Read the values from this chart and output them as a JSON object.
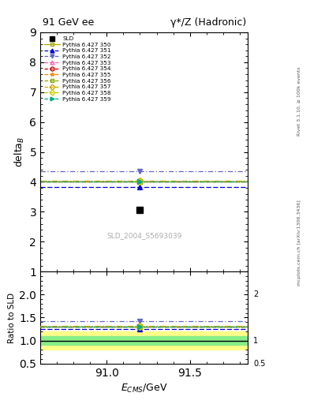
{
  "title_left": "91 GeV ee",
  "title_right": "γ*/Z (Hadronic)",
  "ylabel_main": "delta_B",
  "ylabel_ratio": "Ratio to SLD",
  "xlabel": "E_{CMS}/GeV",
  "watermark": "SLD_2004_S5693039",
  "right_label_top": "Rivet 3.1.10, ≥ 100k events",
  "right_label_bottom": "mcplots.cern.ch [arXiv:1306.3436]",
  "ylim_main": [
    1.0,
    9.0
  ],
  "ylim_ratio": [
    0.5,
    2.5
  ],
  "xlim": [
    90.6,
    91.85
  ],
  "sld_x": 91.2,
  "sld_y": 3.07,
  "pythia_x": 91.2,
  "lines": [
    {
      "label": "Pythia 6.427 350",
      "y": 4.02,
      "color": "#aaaa00",
      "marker": "s",
      "mfc": "none",
      "dashes": []
    },
    {
      "label": "Pythia 6.427 351",
      "y": 3.84,
      "color": "#0000dd",
      "marker": "^",
      "mfc": "#0000dd",
      "dashes": [
        5,
        2
      ]
    },
    {
      "label": "Pythia 6.427 352",
      "y": 4.35,
      "color": "#6666cc",
      "marker": "v",
      "mfc": "#6666cc",
      "dashes": [
        5,
        2,
        1,
        2
      ]
    },
    {
      "label": "Pythia 6.427 353",
      "y": 4.02,
      "color": "#ff66aa",
      "marker": "^",
      "mfc": "none",
      "dashes": [
        1,
        2
      ]
    },
    {
      "label": "Pythia 6.427 354",
      "y": 4.02,
      "color": "#cc0000",
      "marker": "o",
      "mfc": "none",
      "dashes": [
        4,
        2
      ]
    },
    {
      "label": "Pythia 6.427 355",
      "y": 4.02,
      "color": "#ff8800",
      "marker": "*",
      "mfc": "#ff8800",
      "dashes": [
        4,
        2,
        1,
        2
      ]
    },
    {
      "label": "Pythia 6.427 356",
      "y": 4.02,
      "color": "#88aa00",
      "marker": "s",
      "mfc": "none",
      "dashes": [
        1,
        2
      ]
    },
    {
      "label": "Pythia 6.427 357",
      "y": 4.05,
      "color": "#ccaa00",
      "marker": "D",
      "mfc": "none",
      "dashes": [
        6,
        2,
        1,
        2
      ]
    },
    {
      "label": "Pythia 6.427 358",
      "y": 4.02,
      "color": "#cccc00",
      "marker": "D",
      "mfc": "none",
      "dashes": [
        1,
        3
      ]
    },
    {
      "label": "Pythia 6.427 359",
      "y": 4.02,
      "color": "#00aa88",
      "marker": ">",
      "mfc": "#00aa88",
      "dashes": [
        4,
        1,
        1,
        1
      ]
    }
  ],
  "band_green": 0.1,
  "band_yellow": 0.2,
  "ratio_lines": [
    {
      "y": 1.31,
      "color": "#aaaa00",
      "dashes": []
    },
    {
      "y": 1.25,
      "color": "#0000dd",
      "dashes": [
        5,
        2
      ]
    },
    {
      "y": 1.42,
      "color": "#6666cc",
      "dashes": [
        5,
        2,
        1,
        2
      ]
    },
    {
      "y": 1.31,
      "color": "#ff66aa",
      "dashes": [
        1,
        2
      ]
    },
    {
      "y": 1.31,
      "color": "#cc0000",
      "dashes": [
        4,
        2
      ]
    },
    {
      "y": 1.31,
      "color": "#ff8800",
      "dashes": [
        4,
        2,
        1,
        2
      ]
    },
    {
      "y": 1.31,
      "color": "#88aa00",
      "dashes": [
        1,
        2
      ]
    },
    {
      "y": 1.32,
      "color": "#ccaa00",
      "dashes": [
        6,
        2,
        1,
        2
      ]
    },
    {
      "y": 1.31,
      "color": "#cccc00",
      "dashes": [
        1,
        3
      ]
    },
    {
      "y": 1.31,
      "color": "#00aa88",
      "dashes": [
        4,
        1,
        1,
        1
      ]
    }
  ],
  "ratio_markers": [
    {
      "y": 1.31,
      "color": "#aaaa00",
      "marker": "s",
      "mfc": "none"
    },
    {
      "y": 1.25,
      "color": "#0000dd",
      "marker": "^",
      "mfc": "#0000dd"
    },
    {
      "y": 1.42,
      "color": "#6666cc",
      "marker": "v",
      "mfc": "#6666cc"
    },
    {
      "y": 1.31,
      "color": "#ff66aa",
      "marker": "^",
      "mfc": "none"
    },
    {
      "y": 1.31,
      "color": "#cc0000",
      "marker": "o",
      "mfc": "none"
    },
    {
      "y": 1.31,
      "color": "#ff8800",
      "marker": "*",
      "mfc": "#ff8800"
    },
    {
      "y": 1.31,
      "color": "#88aa00",
      "marker": "s",
      "mfc": "none"
    },
    {
      "y": 1.32,
      "color": "#ccaa00",
      "marker": "D",
      "mfc": "none"
    },
    {
      "y": 1.31,
      "color": "#cccc00",
      "marker": "D",
      "mfc": "none"
    },
    {
      "y": 1.31,
      "color": "#00aa88",
      "marker": ">",
      "mfc": "#00aa88"
    }
  ]
}
